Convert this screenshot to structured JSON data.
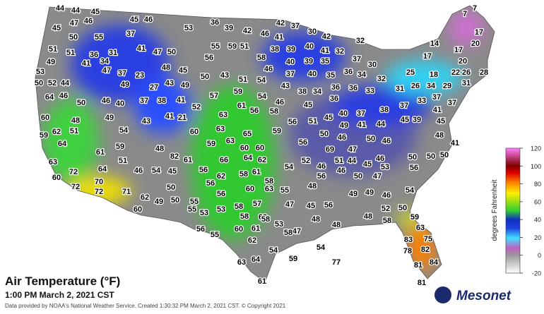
{
  "map": {
    "title": "Air Temperature (°F)",
    "subtitle": "1:00 PM March 2, 2021 CST",
    "credit": "Data provided by NOAA's National Weather Service. Created 1:30:32 PM March 2, 2021 CST. © Copyright 2021",
    "station_values": [
      44,
      44,
      45,
      46,
      47,
      45,
      46,
      45,
      50,
      55,
      37,
      53,
      36,
      39,
      42,
      46,
      42,
      37,
      30,
      41,
      42,
      32,
      14,
      7,
      7,
      17,
      20,
      51,
      51,
      36,
      31,
      41,
      47,
      50,
      56,
      55,
      59,
      51,
      58,
      38,
      39,
      40,
      41,
      32,
      37,
      30,
      17,
      17,
      49,
      41,
      34,
      48,
      45,
      46,
      40,
      39,
      35,
      36,
      34,
      32,
      25,
      18,
      20,
      22,
      26,
      28,
      53,
      47,
      37,
      23,
      50,
      43,
      51,
      54,
      37,
      40,
      35,
      50,
      52,
      44,
      49,
      27,
      43,
      49,
      43,
      38,
      34,
      36,
      36,
      31,
      26,
      34,
      29,
      31,
      64,
      46,
      50,
      46,
      40,
      37,
      38,
      41,
      57,
      59,
      54,
      36,
      33,
      38,
      37,
      33,
      37,
      37,
      60,
      48,
      49,
      52,
      63,
      61,
      56,
      58,
      46,
      45,
      56,
      51,
      45,
      40,
      37,
      41,
      45,
      43,
      41,
      21,
      60,
      62,
      51,
      54,
      63,
      65,
      59,
      50,
      46,
      41,
      44,
      45,
      39,
      49,
      46,
      48,
      59,
      64,
      59,
      48,
      59,
      63,
      60,
      60,
      56,
      50,
      41,
      69,
      61,
      51,
      82,
      61,
      66,
      64,
      62,
      47,
      46,
      50,
      50,
      50,
      52,
      63,
      72,
      64,
      46,
      54,
      45,
      56,
      62,
      58,
      61,
      54,
      46,
      51,
      44,
      45,
      46,
      56,
      50,
      47,
      53,
      56,
      60,
      70,
      72,
      72,
      71,
      50,
      56,
      56,
      58,
      60,
      63,
      55,
      48,
      49,
      49,
      46,
      54,
      62,
      49,
      50,
      55,
      55,
      58,
      57,
      47,
      45,
      48,
      52,
      50,
      60,
      53,
      53,
      58,
      56,
      48,
      48,
      58,
      59,
      60,
      56,
      55,
      60,
      61,
      58,
      53,
      47,
      63,
      62,
      58,
      83,
      75,
      82,
      78,
      54,
      54,
      59,
      77,
      63,
      64,
      81,
      84,
      81,
      61
    ]
  },
  "colorbar": {
    "label": "degrees Fahrenheit",
    "lim": [
      -20,
      120
    ],
    "ticks": [
      -20,
      0,
      20,
      40,
      60,
      80,
      100,
      120
    ]
  },
  "logo": "Mesonet"
}
